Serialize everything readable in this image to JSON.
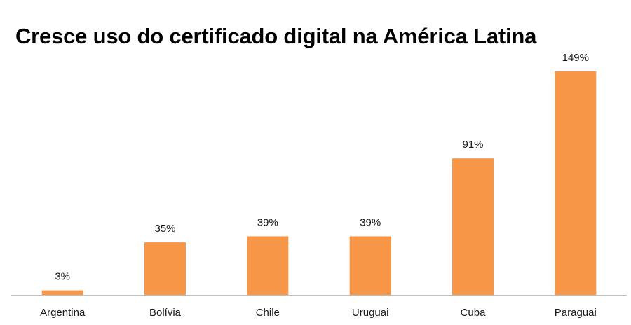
{
  "chart_data": {
    "type": "bar",
    "title": "Cresce uso do certificado digital na América Latina",
    "categories": [
      "Argentina",
      "Bolívia",
      "Chile",
      "Uruguai",
      "Cuba",
      "Paraguai"
    ],
    "values": [
      3,
      35,
      39,
      39,
      91,
      149
    ],
    "data_labels": [
      "3%",
      "35%",
      "39%",
      "39%",
      "91%",
      "149%"
    ],
    "xlabel": "",
    "ylabel": "",
    "ylim": [
      0,
      160
    ],
    "grid": false,
    "legend": "none",
    "bar_color": "#F79646",
    "axis_color": "#BFBFBF"
  }
}
